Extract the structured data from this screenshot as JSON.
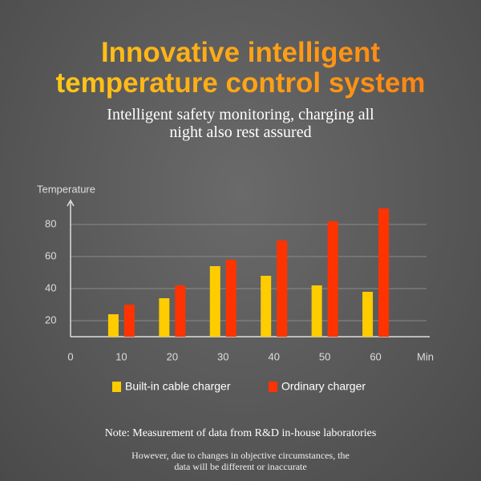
{
  "header": {
    "title": [
      "Innovative intelligent",
      "temperature control system"
    ],
    "subtitle": [
      "Intelligent safety monitoring, charging all",
      "night also rest assured"
    ]
  },
  "chart_data": {
    "type": "bar",
    "y_label": "Temperature",
    "x_label": "Min",
    "x": [
      10,
      20,
      30,
      40,
      50,
      60
    ],
    "series": [
      {
        "name": "Built-in cable charger",
        "color": "#ffcc00",
        "values": [
          24,
          34,
          54,
          48,
          42,
          38
        ]
      },
      {
        "name": "Ordinary charger",
        "color": "#ff3300",
        "values": [
          30,
          42,
          58,
          70,
          82,
          90
        ]
      }
    ],
    "xlim": [
      0,
      70
    ],
    "xticks": [
      0,
      10,
      20,
      30,
      40,
      50,
      60
    ],
    "ylim": [
      10,
      95
    ],
    "yticks": [
      20,
      40,
      60,
      80
    ],
    "grid": true
  },
  "footer": {
    "note": "Note: Measurement of data from R&D in-house laboratories",
    "disclaimer": [
      "However, due to changes in objective circumstances, the",
      "data will be different or inaccurate"
    ]
  }
}
